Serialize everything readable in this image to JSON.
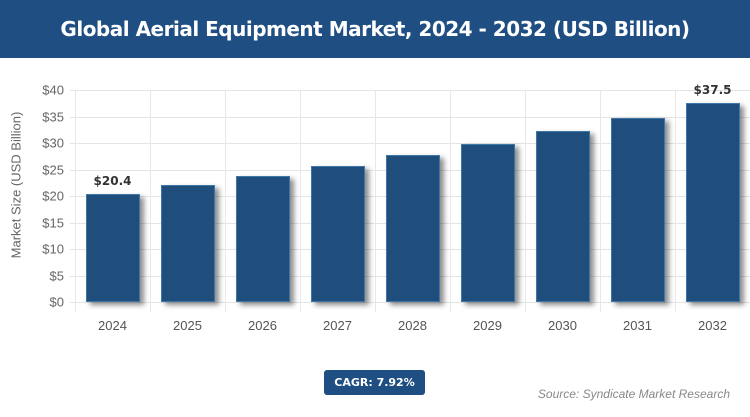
{
  "header": {
    "title": "Global Aerial Equipment Market, 2024 - 2032 (USD Billion)"
  },
  "chart_data": {
    "type": "bar",
    "title": "Global Aerial Equipment Market, 2024 - 2032 (USD Billion)",
    "categories": [
      "2024",
      "2025",
      "2026",
      "2027",
      "2028",
      "2029",
      "2030",
      "2031",
      "2032"
    ],
    "values": [
      20.4,
      22.0,
      23.8,
      25.6,
      27.7,
      29.9,
      32.2,
      34.8,
      37.5
    ],
    "data_labels": {
      "0": "$20.4",
      "8": "$37.5"
    },
    "xlabel": "",
    "ylabel": "Market Size (USD Billion)",
    "ylim": [
      0,
      40
    ],
    "yticks": [
      "$0",
      "$5",
      "$10",
      "$15",
      "$20",
      "$25",
      "$30",
      "$35",
      "$40"
    ],
    "grid": true,
    "bar_color": "#1f4e7d",
    "legend": null
  },
  "footer": {
    "cagr": "CAGR: 7.92%",
    "source": "Source: Syndicate Market Research"
  },
  "colors": {
    "header_bg": "#1f4e82",
    "bar": "#1f4e7d"
  }
}
